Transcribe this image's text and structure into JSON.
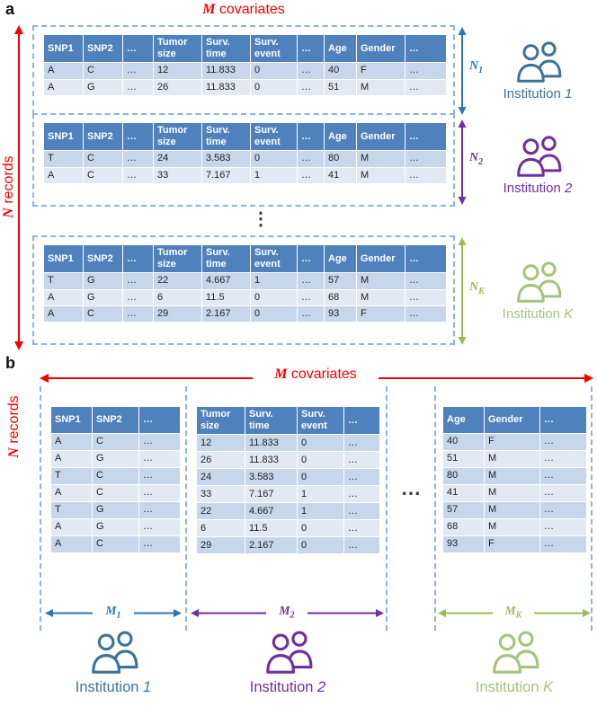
{
  "figure": {
    "panel_a_label": "a",
    "panel_b_label": "b"
  },
  "labels": {
    "m_var": "M",
    "m_rest": " covariates",
    "n_var": "N",
    "n_rest": " records",
    "dots_vertical": "⋮",
    "dots_horizontal": "⋯"
  },
  "colors": {
    "red": "#f50000",
    "table_header": "#4f81bd",
    "row_dark": "#c7d7eb",
    "row_light": "#e1e9f5",
    "blue": "#2e75b6",
    "purple": "#7030a0",
    "green": "#9bbb59",
    "institution_blue": "#3d7399",
    "institution_purple": "#7030a0",
    "institution_green": "#a3c57b",
    "dashed_border": "#8fb3e0"
  },
  "panel_a": {
    "columns": [
      "SNP1",
      "SNP2",
      "…",
      "Tumor size",
      "Surv. time",
      "Surv. event",
      "…",
      "Age",
      "Gender",
      "…"
    ],
    "blocks": [
      {
        "rows": [
          [
            "A",
            "C",
            "…",
            "12",
            "11.833",
            "0",
            "…",
            "40",
            "F",
            "…"
          ],
          [
            "A",
            "G",
            "…",
            "26",
            "11.833",
            "0",
            "…",
            "51",
            "M",
            "…"
          ]
        ],
        "count_base": "N",
        "count_sub": "1",
        "institution_prefix": "Institution",
        "institution_suffix": "1"
      },
      {
        "rows": [
          [
            "T",
            "C",
            "…",
            "24",
            "3.583",
            "0",
            "…",
            "80",
            "M",
            "…"
          ],
          [
            "A",
            "C",
            "…",
            "33",
            "7.167",
            "1",
            "…",
            "41",
            "M",
            "…"
          ]
        ],
        "count_base": "N",
        "count_sub": "2",
        "institution_prefix": "Institution",
        "institution_suffix": "2"
      },
      {
        "rows": [
          [
            "T",
            "G",
            "…",
            "22",
            "4.667",
            "1",
            "…",
            "57",
            "M",
            "…"
          ],
          [
            "A",
            "G",
            "…",
            "6",
            "11.5",
            "0",
            "…",
            "68",
            "M",
            "…"
          ],
          [
            "A",
            "C",
            "…",
            "29",
            "2.167",
            "0",
            "…",
            "93",
            "F",
            "…"
          ]
        ],
        "count_base": "N",
        "count_sub": "K",
        "institution_prefix": "Institution",
        "institution_suffix": "K"
      }
    ]
  },
  "panel_b": {
    "groups": [
      {
        "columns": [
          "SNP1",
          "SNP2",
          "…"
        ],
        "rows": [
          [
            "A",
            "C",
            "…"
          ],
          [
            "A",
            "G",
            "…"
          ],
          [
            "T",
            "C",
            "…"
          ],
          [
            "A",
            "C",
            "…"
          ],
          [
            "T",
            "G",
            "…"
          ],
          [
            "A",
            "G",
            "…"
          ],
          [
            "A",
            "C",
            "…"
          ]
        ],
        "count_base": "M",
        "count_sub": "1",
        "institution_prefix": "Institution",
        "institution_suffix": "1"
      },
      {
        "columns": [
          "Tumor size",
          "Surv. time",
          "Surv. event",
          "…"
        ],
        "rows": [
          [
            "12",
            "11.833",
            "0",
            "…"
          ],
          [
            "26",
            "11.833",
            "0",
            "…"
          ],
          [
            "24",
            "3.583",
            "0",
            "…"
          ],
          [
            "33",
            "7.167",
            "1",
            "…"
          ],
          [
            "22",
            "4.667",
            "1",
            "…"
          ],
          [
            "6",
            "11.5",
            "0",
            "…"
          ],
          [
            "29",
            "2.167",
            "0",
            "…"
          ]
        ],
        "count_base": "M",
        "count_sub": "2",
        "institution_prefix": "Institution",
        "institution_suffix": "2"
      },
      {
        "columns": [
          "Age",
          "Gender",
          "…"
        ],
        "rows": [
          [
            "40",
            "F",
            "…"
          ],
          [
            "51",
            "M",
            "…"
          ],
          [
            "80",
            "M",
            "…"
          ],
          [
            "41",
            "M",
            "…"
          ],
          [
            "57",
            "M",
            "…"
          ],
          [
            "68",
            "M",
            "…"
          ],
          [
            "93",
            "F",
            "…"
          ]
        ],
        "count_base": "M",
        "count_sub": "K",
        "institution_prefix": "Institution",
        "institution_suffix": "K"
      }
    ]
  }
}
